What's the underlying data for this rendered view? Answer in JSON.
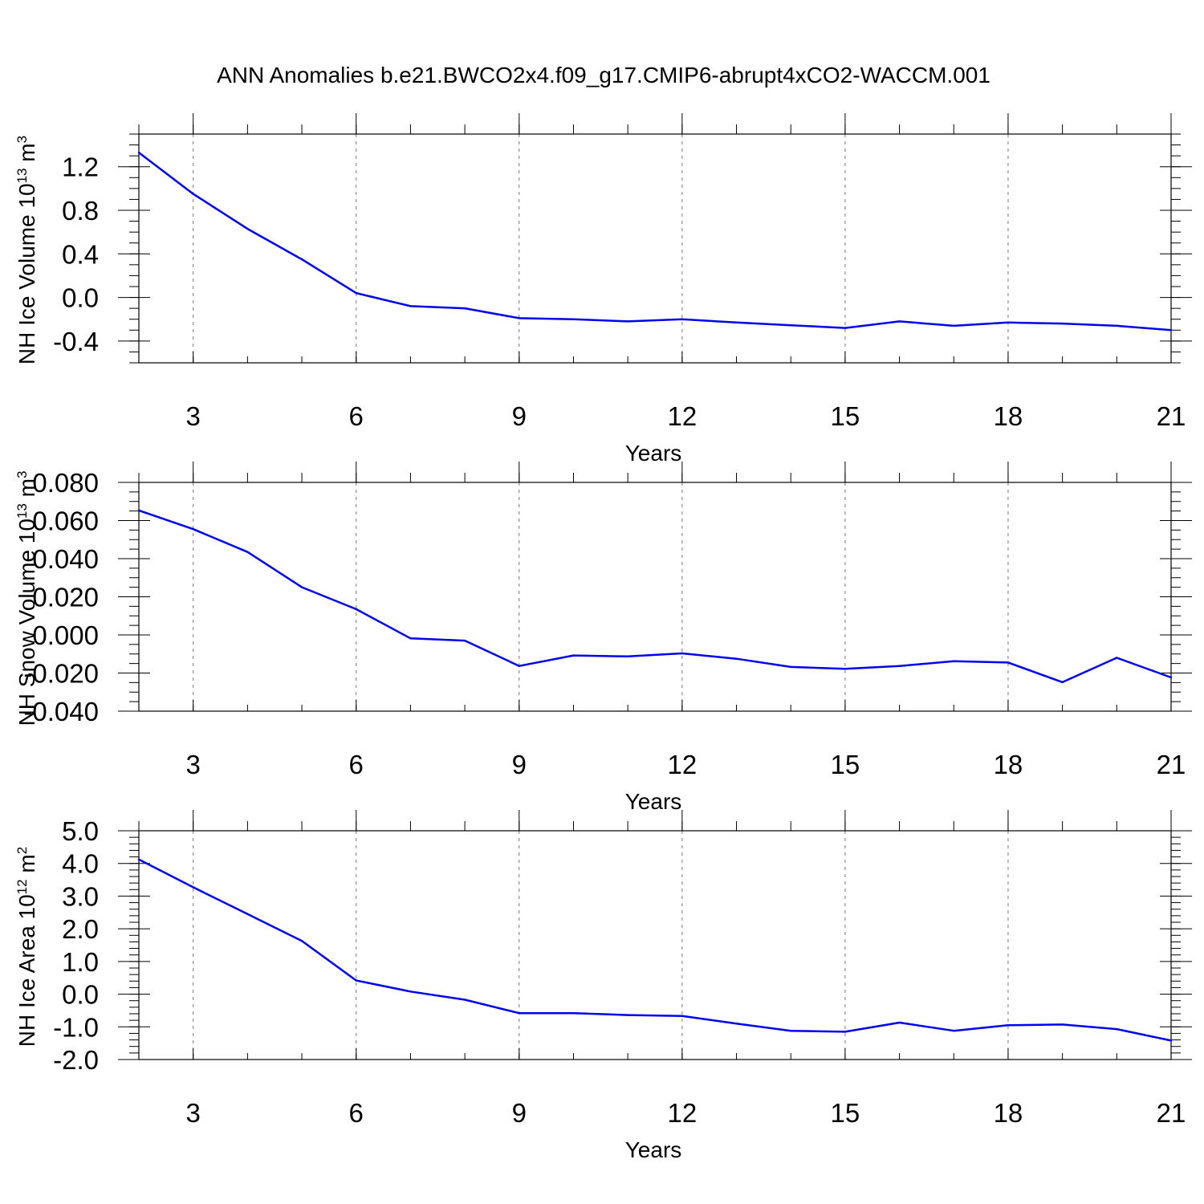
{
  "title": "ANN Anomalies b.e21.BWCO2x4.f09_g17.CMIP6-abrupt4xCO2-WACCM.001",
  "line_color": "#0000ee",
  "chart_data": [
    {
      "type": "line",
      "xlabel": "Years",
      "ylabel_main": "NH Ice Volume 10",
      "ylabel_exp": "13",
      "ylabel_unit": " m",
      "ylabel_unit_exp": "3",
      "xlim": [
        2,
        21
      ],
      "ylim": [
        -0.6,
        1.5
      ],
      "x_ticks": [
        3,
        6,
        9,
        12,
        15,
        18,
        21
      ],
      "x_tick_labels": [
        "3",
        "6",
        "9",
        "12",
        "15",
        "18",
        "21"
      ],
      "y_ticks": [
        -0.4,
        0.0,
        0.4,
        0.8,
        1.2
      ],
      "y_tick_labels": [
        "-0.4",
        "0.0",
        "0.4",
        "0.8",
        "1.2"
      ],
      "y_minor_step": 0.1,
      "grid": "dashed vertical at major x ticks",
      "series": [
        {
          "name": "NH Ice Volume",
          "x": [
            2,
            3,
            4,
            5,
            6,
            7,
            8,
            9,
            10,
            11,
            12,
            13,
            14,
            15,
            16,
            17,
            18,
            19,
            20,
            21
          ],
          "values": [
            1.33,
            0.95,
            0.63,
            0.35,
            0.04,
            -0.08,
            -0.1,
            -0.19,
            -0.2,
            -0.22,
            -0.2,
            -0.23,
            -0.255,
            -0.28,
            -0.22,
            -0.26,
            -0.23,
            -0.24,
            -0.26,
            -0.3
          ]
        }
      ]
    },
    {
      "type": "line",
      "xlabel": "Years",
      "ylabel_main": "NH Snow Volume 10",
      "ylabel_exp": "13",
      "ylabel_unit": " m",
      "ylabel_unit_exp": "3",
      "xlim": [
        2,
        21
      ],
      "ylim": [
        -0.04,
        0.08
      ],
      "x_ticks": [
        3,
        6,
        9,
        12,
        15,
        18,
        21
      ],
      "x_tick_labels": [
        "3",
        "6",
        "9",
        "12",
        "15",
        "18",
        "21"
      ],
      "y_ticks": [
        -0.04,
        -0.02,
        0.0,
        0.02,
        0.04,
        0.06,
        0.08
      ],
      "y_tick_labels": [
        "-0.040",
        "-0.020",
        "0.000",
        "0.020",
        "0.040",
        "0.060",
        "0.080"
      ],
      "y_minor_step": 0.005,
      "grid": "dashed vertical at major x ticks",
      "series": [
        {
          "name": "NH Snow Volume",
          "x": [
            2,
            3,
            4,
            5,
            6,
            7,
            8,
            9,
            10,
            11,
            12,
            13,
            14,
            15,
            16,
            17,
            18,
            19,
            20,
            21
          ],
          "values": [
            0.0653,
            0.0555,
            0.0435,
            0.025,
            0.0135,
            -0.0018,
            -0.003,
            -0.0163,
            -0.0108,
            -0.0113,
            -0.0097,
            -0.0125,
            -0.0168,
            -0.0178,
            -0.0163,
            -0.0138,
            -0.0145,
            -0.0248,
            -0.012,
            -0.0223
          ]
        }
      ]
    },
    {
      "type": "line",
      "xlabel": "Years",
      "ylabel_main": "NH Ice Area 10",
      "ylabel_exp": "12",
      "ylabel_unit": " m",
      "ylabel_unit_exp": "2",
      "xlim": [
        2,
        21
      ],
      "ylim": [
        -2.0,
        5.0
      ],
      "x_ticks": [
        3,
        6,
        9,
        12,
        15,
        18,
        21
      ],
      "x_tick_labels": [
        "3",
        "6",
        "9",
        "12",
        "15",
        "18",
        "21"
      ],
      "y_ticks": [
        -2.0,
        -1.0,
        0.0,
        1.0,
        2.0,
        3.0,
        4.0,
        5.0
      ],
      "y_tick_labels": [
        "-2.0",
        "-1.0",
        "0.0",
        "1.0",
        "2.0",
        "3.0",
        "4.0",
        "5.0"
      ],
      "y_minor_step": 0.2,
      "grid": "dashed vertical at major x ticks",
      "series": [
        {
          "name": "NH Ice Area",
          "x": [
            2,
            3,
            4,
            5,
            6,
            7,
            8,
            9,
            10,
            11,
            12,
            13,
            14,
            15,
            16,
            17,
            18,
            19,
            20,
            21
          ],
          "values": [
            4.12,
            3.27,
            2.45,
            1.63,
            0.42,
            0.08,
            -0.17,
            -0.58,
            -0.58,
            -0.64,
            -0.67,
            -0.9,
            -1.12,
            -1.15,
            -0.87,
            -1.12,
            -0.95,
            -0.93,
            -1.07,
            -1.42
          ]
        }
      ]
    }
  ]
}
